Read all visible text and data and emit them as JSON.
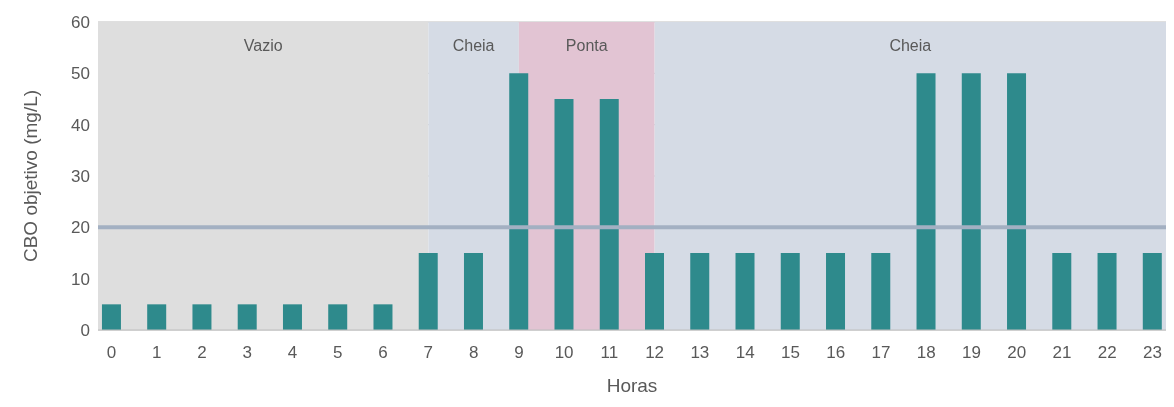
{
  "chart_data": {
    "type": "bar",
    "xlabel": "Horas",
    "ylabel": "CBO objetivo (mg/L)",
    "x": [
      0,
      1,
      2,
      3,
      4,
      5,
      6,
      7,
      8,
      9,
      10,
      11,
      12,
      13,
      14,
      15,
      16,
      17,
      18,
      19,
      20,
      21,
      22,
      23
    ],
    "values": [
      5,
      5,
      5,
      5,
      5,
      5,
      5,
      15,
      15,
      50,
      45,
      45,
      15,
      15,
      15,
      15,
      15,
      15,
      50,
      50,
      50,
      15,
      15,
      15
    ],
    "color": "#2e8a8c",
    "xlim": [
      -0.3,
      23.3
    ],
    "xticks": [
      0,
      1,
      2,
      3,
      4,
      5,
      6,
      7,
      8,
      9,
      10,
      11,
      12,
      13,
      14,
      15,
      16,
      17,
      18,
      19,
      20,
      21,
      22,
      23
    ],
    "ylim": [
      0,
      60
    ],
    "yticks": [
      0,
      10,
      20,
      30,
      40,
      50,
      60
    ],
    "bands": [
      {
        "axis": "x",
        "from": -0.3,
        "to": 7,
        "label": "Vazio",
        "color": "#dedede"
      },
      {
        "axis": "x",
        "from": 7,
        "to": 9,
        "label": "Cheia",
        "color": "#d5dbe5"
      },
      {
        "axis": "x",
        "from": 9,
        "to": 12,
        "label": "Ponta",
        "color": "#e2c4d3"
      },
      {
        "axis": "x",
        "from": 12,
        "to": 23.3,
        "label": "Cheia",
        "color": "#d5dbe5"
      }
    ],
    "ref_lines": [
      {
        "axis": "y",
        "value": 20,
        "color": "#a3b0c2"
      }
    ],
    "grid": "y"
  }
}
